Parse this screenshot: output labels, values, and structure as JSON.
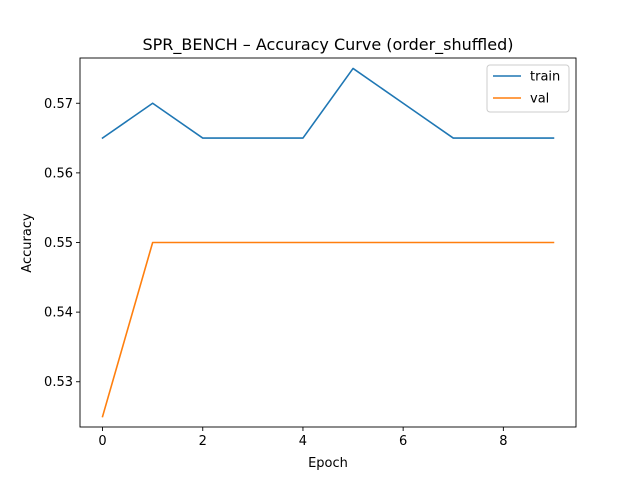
{
  "chart_data": {
    "type": "line",
    "title": "SPR_BENCH – Accuracy Curve (order_shuffled)",
    "xlabel": "Epoch",
    "ylabel": "Accuracy",
    "x": [
      0,
      1,
      2,
      3,
      4,
      5,
      6,
      7,
      8,
      9
    ],
    "xlim": [
      -0.45,
      9.45
    ],
    "ylim": [
      0.5235,
      0.5765
    ],
    "xticks": [
      0,
      2,
      4,
      6,
      8
    ],
    "yticks": [
      0.53,
      0.54,
      0.55,
      0.56,
      0.57
    ],
    "ytick_labels": [
      "0.53",
      "0.54",
      "0.55",
      "0.56",
      "0.57"
    ],
    "series": [
      {
        "name": "train",
        "color": "#1f77b4",
        "values": [
          0.565,
          0.57,
          0.565,
          0.565,
          0.565,
          0.575,
          0.57,
          0.565,
          0.565,
          0.565
        ]
      },
      {
        "name": "val",
        "color": "#ff7f0e",
        "values": [
          0.525,
          0.55,
          0.55,
          0.55,
          0.55,
          0.55,
          0.55,
          0.55,
          0.55,
          0.55
        ]
      }
    ],
    "grid": false,
    "legend_position": "top-right"
  }
}
